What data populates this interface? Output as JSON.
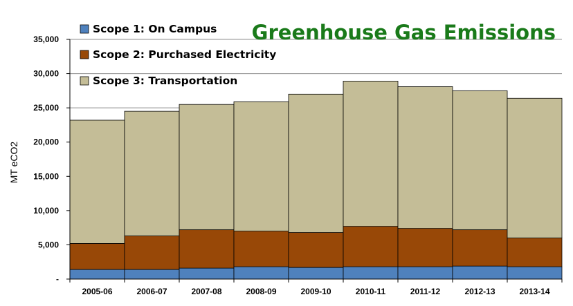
{
  "chart_data": {
    "type": "bar",
    "stacked": true,
    "title": "Greenhouse Gas Emissions",
    "xlabel": "",
    "ylabel": "MT eCO2",
    "ylim": [
      0,
      35000
    ],
    "yticks": [
      "-",
      "5,000",
      "10,000",
      "15,000",
      "20,000",
      "25,000",
      "30,000",
      "35,000"
    ],
    "categories": [
      "2005-06",
      "2006-07",
      "2007-08",
      "2008-09",
      "2009-10",
      "2010-11",
      "2011-12",
      "2012-13",
      "2013-14"
    ],
    "series": [
      {
        "name": "Scope 1: On Campus",
        "color": "#4f81bd",
        "values": [
          1400,
          1400,
          1600,
          1800,
          1700,
          1800,
          1800,
          1900,
          1800
        ]
      },
      {
        "name": "Scope 2: Purchased Electricity",
        "color": "#984807",
        "values": [
          3800,
          4900,
          5600,
          5200,
          5100,
          5900,
          5600,
          5300,
          4200
        ]
      },
      {
        "name": "Scope 3: Transportation",
        "color": "#c4bd97",
        "values": [
          18000,
          18200,
          18300,
          18900,
          20200,
          21200,
          20700,
          20300,
          20400
        ]
      }
    ],
    "grid": "horizontal",
    "legend_position": "top-left"
  }
}
